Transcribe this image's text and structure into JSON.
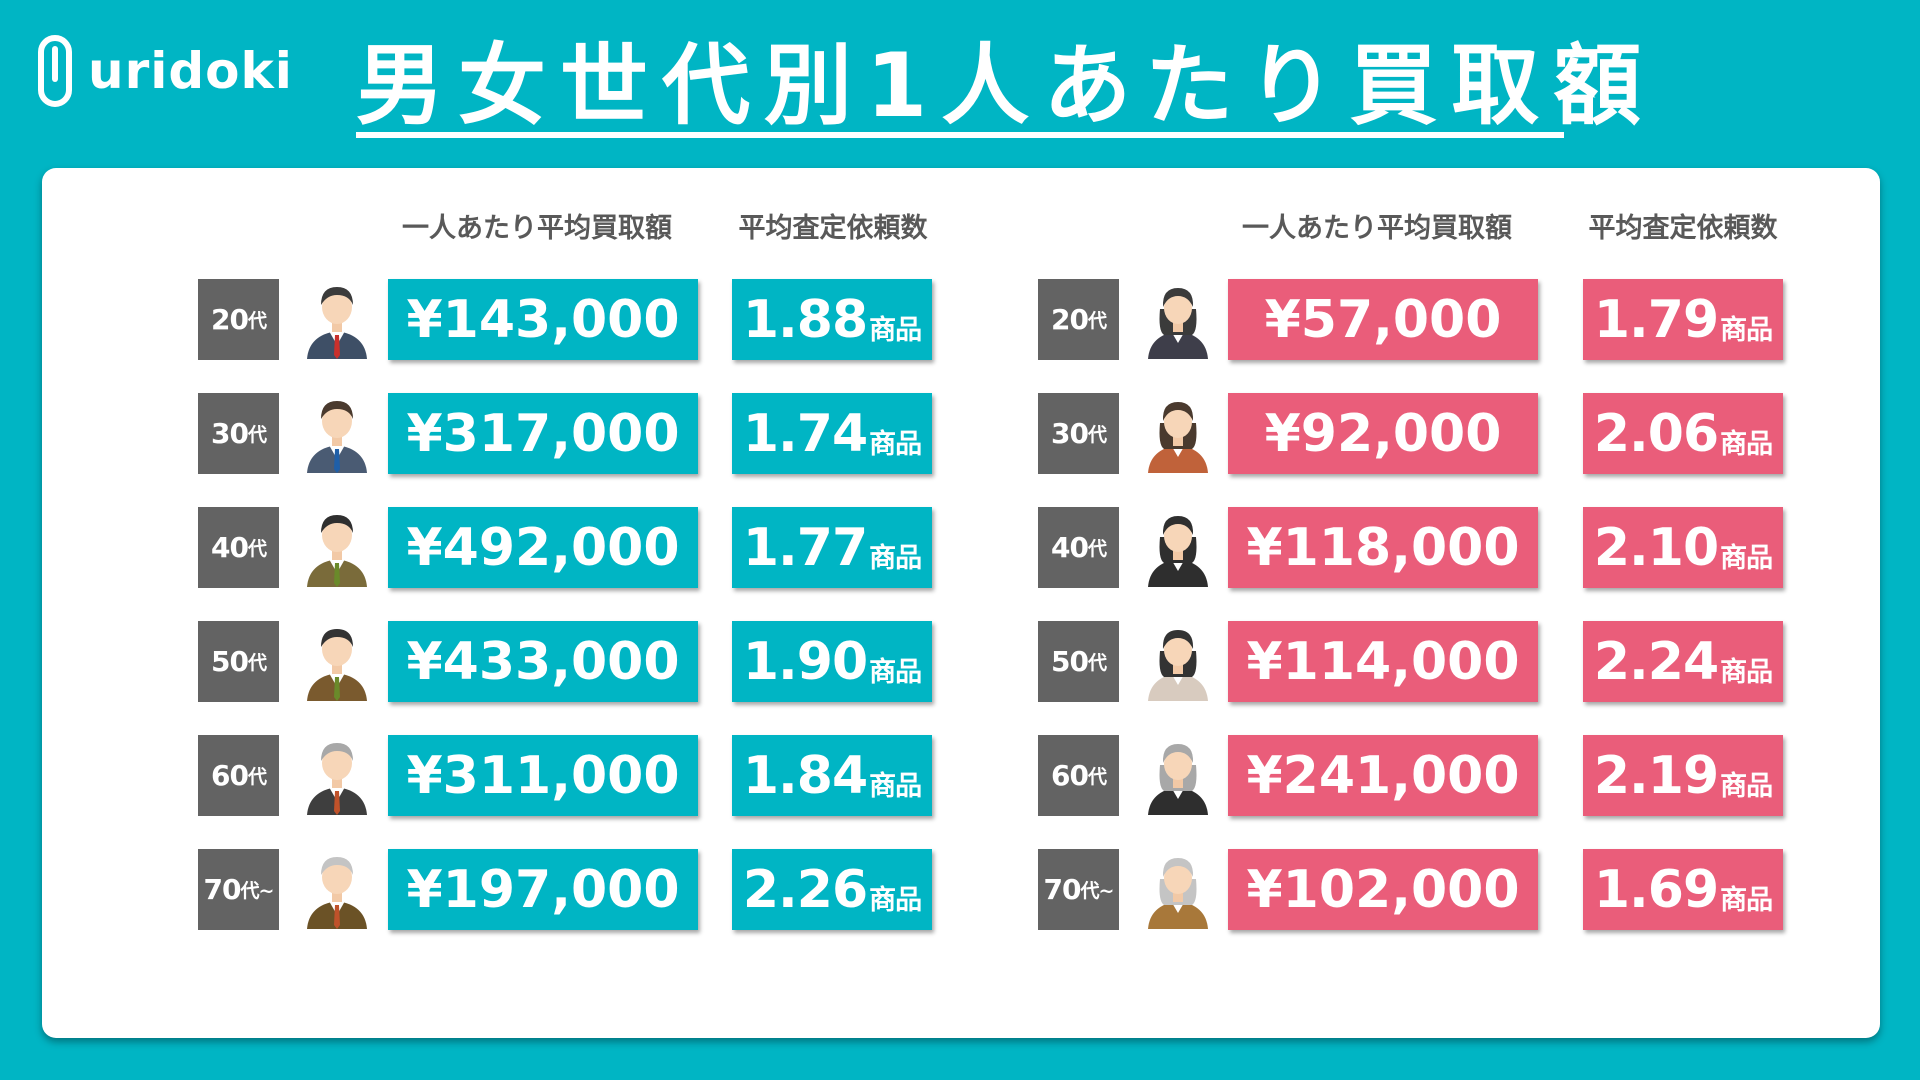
{
  "logo": {
    "text": "uridoki"
  },
  "title": "男女世代別1人あたり買取額",
  "headers": {
    "amount": "一人あたり平均買取額",
    "count": "平均査定依頼数"
  },
  "unit": "商品",
  "age_suffix": "代",
  "colors": {
    "background": "#00b5c4",
    "male": "#00b5c4",
    "female": "#ea5d7a",
    "age_box": "#636363"
  },
  "male": [
    {
      "age": "20",
      "suffix_extra": "",
      "amount": "¥143,000",
      "count": "1.88",
      "avatar": "young-man-icon"
    },
    {
      "age": "30",
      "suffix_extra": "",
      "amount": "¥317,000",
      "count": "1.74",
      "avatar": "man-icon"
    },
    {
      "age": "40",
      "suffix_extra": "",
      "amount": "¥492,000",
      "count": "1.77",
      "avatar": "middle-aged-man-icon"
    },
    {
      "age": "50",
      "suffix_extra": "",
      "amount": "¥433,000",
      "count": "1.90",
      "avatar": "middle-aged-man-icon"
    },
    {
      "age": "60",
      "suffix_extra": "",
      "amount": "¥311,000",
      "count": "1.84",
      "avatar": "senior-man-icon"
    },
    {
      "age": "70",
      "suffix_extra": "~",
      "amount": "¥197,000",
      "count": "2.26",
      "avatar": "elderly-man-icon"
    }
  ],
  "female": [
    {
      "age": "20",
      "suffix_extra": "",
      "amount": "¥57,000",
      "count": "1.79",
      "avatar": "young-woman-icon"
    },
    {
      "age": "30",
      "suffix_extra": "",
      "amount": "¥92,000",
      "count": "2.06",
      "avatar": "woman-icon"
    },
    {
      "age": "40",
      "suffix_extra": "",
      "amount": "¥118,000",
      "count": "2.10",
      "avatar": "middle-aged-woman-icon"
    },
    {
      "age": "50",
      "suffix_extra": "",
      "amount": "¥114,000",
      "count": "2.24",
      "avatar": "middle-aged-woman-icon"
    },
    {
      "age": "60",
      "suffix_extra": "",
      "amount": "¥241,000",
      "count": "2.19",
      "avatar": "senior-woman-icon"
    },
    {
      "age": "70",
      "suffix_extra": "~",
      "amount": "¥102,000",
      "count": "1.69",
      "avatar": "elderly-woman-icon"
    }
  ]
}
